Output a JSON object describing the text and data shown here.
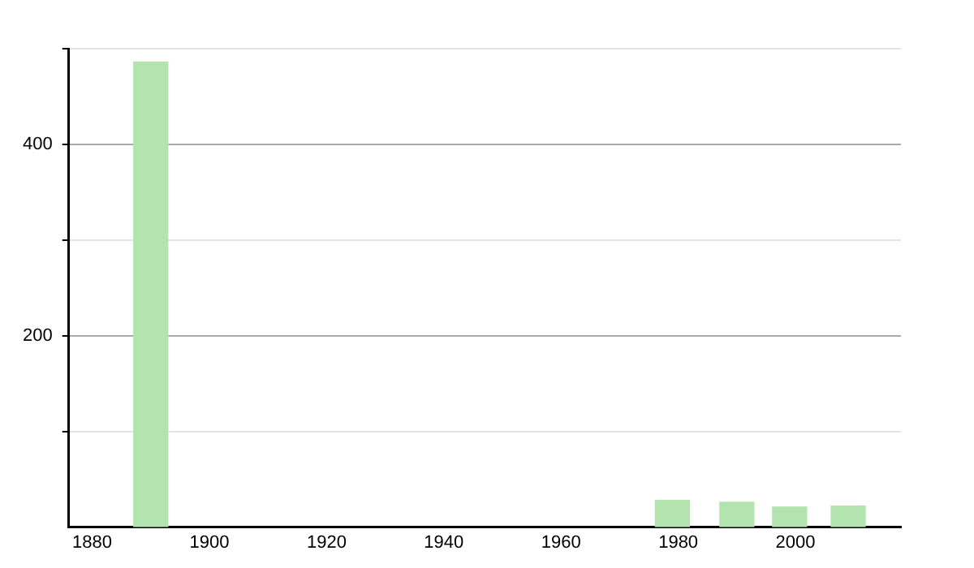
{
  "chart_data": {
    "type": "bar",
    "x": [
      1890,
      1979,
      1990,
      1999,
      2009
    ],
    "values": [
      486,
      28,
      26,
      21,
      22
    ],
    "color": "#b3e4b0",
    "xlim": [
      1876,
      2018
    ],
    "xticks": [
      1880,
      1900,
      1920,
      1940,
      1960,
      1980,
      2000
    ],
    "ylim": [
      0,
      500
    ],
    "yticks": [
      {
        "value": 100,
        "label": null
      },
      200,
      {
        "value": 300,
        "label": null
      },
      400,
      {
        "value": 500,
        "label": null
      }
    ],
    "grid": "y",
    "legend": false
  }
}
